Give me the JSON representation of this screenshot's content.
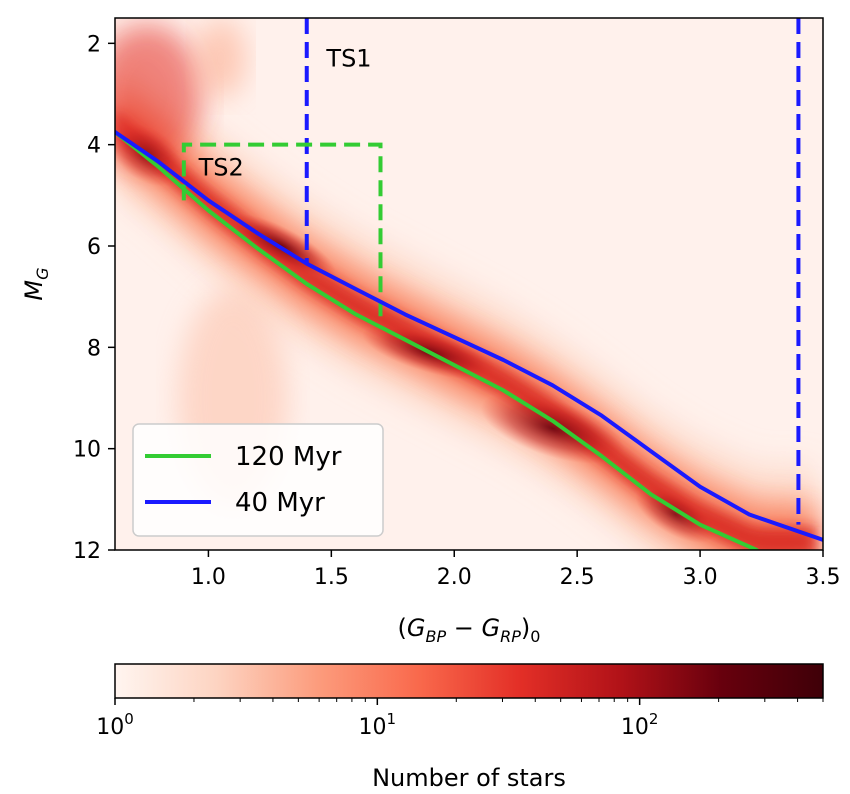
{
  "chart_data": {
    "type": "heatmap",
    "title": "",
    "xlabel": "(G_BP - G_RP)_0",
    "ylabel": "M_G",
    "xlim": [
      0.62,
      3.5
    ],
    "ylim": [
      12,
      1.5
    ],
    "y_inverted": true,
    "x_ticks": [
      "1.0",
      "1.5",
      "2.0",
      "2.5",
      "3.0",
      "3.5"
    ],
    "x_tick_values": [
      1.0,
      1.5,
      2.0,
      2.5,
      3.0,
      3.5
    ],
    "y_ticks": [
      "2",
      "4",
      "6",
      "8",
      "10",
      "12"
    ],
    "y_tick_values": [
      2,
      4,
      6,
      8,
      10,
      12
    ],
    "grid": false,
    "legend": "lower-left",
    "series": [
      {
        "name": "120 Myr",
        "color": "#33cc33",
        "x": [
          0.62,
          0.8,
          1.0,
          1.2,
          1.4,
          1.6,
          1.8,
          2.0,
          2.2,
          2.4,
          2.6,
          2.8,
          3.0,
          3.23
        ],
        "y": [
          3.75,
          4.45,
          5.3,
          6.05,
          6.75,
          7.35,
          7.85,
          8.35,
          8.85,
          9.45,
          10.15,
          10.9,
          11.5,
          12.0
        ]
      },
      {
        "name": "40 Myr",
        "color": "#1a1aff",
        "x": [
          0.62,
          0.8,
          1.0,
          1.2,
          1.4,
          1.6,
          1.8,
          2.0,
          2.2,
          2.4,
          2.6,
          2.8,
          3.0,
          3.2,
          3.5
        ],
        "y": [
          3.75,
          4.35,
          5.1,
          5.75,
          6.35,
          6.85,
          7.35,
          7.8,
          8.25,
          8.75,
          9.35,
          10.05,
          10.75,
          11.3,
          11.8
        ]
      }
    ],
    "annotations": [
      {
        "label": "TS1",
        "x": 1.48,
        "y": 2.3,
        "color": "#1a1aff",
        "type": "vertical-dashed",
        "x_lines": [
          1.4,
          3.4
        ],
        "y_tops": [
          1.5,
          1.5
        ],
        "y_bottoms": [
          6.35,
          11.5
        ]
      },
      {
        "label": "TS2",
        "x": 0.96,
        "y": 4.45,
        "color": "#33cc33",
        "type": "box-dashed",
        "x_range": [
          0.9,
          1.7
        ],
        "y_range": [
          4.0,
          7.5
        ]
      }
    ],
    "colorbar": {
      "label": "Number of stars",
      "scale": "log",
      "min": 1,
      "max": 500,
      "ticks": [
        {
          "value": 1,
          "base": "10",
          "exp": "0"
        },
        {
          "value": 10,
          "base": "10",
          "exp": "1"
        },
        {
          "value": 100,
          "base": "10",
          "exp": "2"
        }
      ],
      "colors": [
        "#fff5f0",
        "#fdd4c2",
        "#fc9c7d",
        "#f9694c",
        "#e32f27",
        "#b11218",
        "#67000d",
        "#3f0008"
      ]
    }
  }
}
